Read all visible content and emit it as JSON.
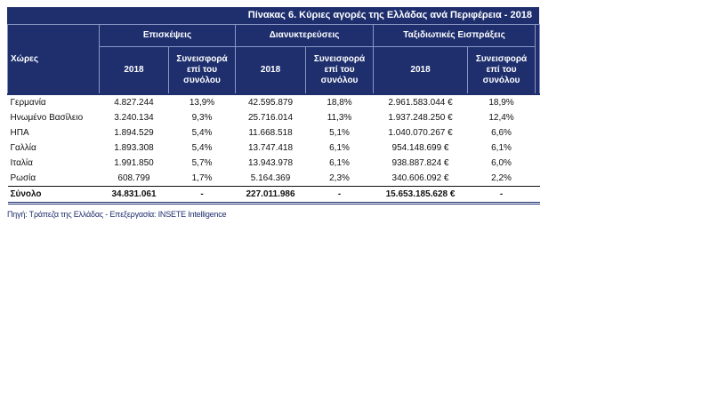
{
  "table": {
    "title": "Πίνακας 6.  Κύριες αγορές  της Ελλάδας ανά Περιφέρεια - 2018",
    "country_header": "Χώρες",
    "groups": [
      "Επισκέψεις",
      "Διανυκτερεύσεις",
      "Ταξιδιωτικές Εισπράξεις"
    ],
    "subheaders": {
      "year": "2018",
      "share": "Συνεισφορά επί του συνόλου"
    },
    "rows": [
      {
        "country": "Γερμανία",
        "visits": "4.827.244",
        "visits_share": "13,9%",
        "nights": "42.595.879",
        "nights_share": "18,8%",
        "receipts": "2.961.583.044 €",
        "receipts_share": "18,9%"
      },
      {
        "country": "Ηνωμένο Βασίλειο",
        "visits": "3.240.134",
        "visits_share": "9,3%",
        "nights": "25.716.014",
        "nights_share": "11,3%",
        "receipts": "1.937.248.250 €",
        "receipts_share": "12,4%"
      },
      {
        "country": "ΗΠΑ",
        "visits": "1.894.529",
        "visits_share": "5,4%",
        "nights": "11.668.518",
        "nights_share": "5,1%",
        "receipts": "1.040.070.267 €",
        "receipts_share": "6,6%"
      },
      {
        "country": "Γαλλία",
        "visits": "1.893.308",
        "visits_share": "5,4%",
        "nights": "13.747.418",
        "nights_share": "6,1%",
        "receipts": "954.148.699 €",
        "receipts_share": "6,1%"
      },
      {
        "country": "Ιταλία",
        "visits": "1.991.850",
        "visits_share": "5,7%",
        "nights": "13.943.978",
        "nights_share": "6,1%",
        "receipts": "938.887.824 €",
        "receipts_share": "6,0%"
      },
      {
        "country": "Ρωσία",
        "visits": "608.799",
        "visits_share": "1,7%",
        "nights": "5.164.369",
        "nights_share": "2,3%",
        "receipts": "340.606.092 €",
        "receipts_share": "2,2%"
      }
    ],
    "total": {
      "country": "Σύνολο",
      "visits": "34.831.061",
      "visits_share": "-",
      "nights": "227.011.986",
      "nights_share": "-",
      "receipts": "15.653.185.628 €",
      "receipts_share": "-"
    }
  },
  "source": "Πηγή: Τράπεζα της Ελλάδας - Επεξεργασία: INSETE Intelligence",
  "colors": {
    "header_bg": "#1f2f6e",
    "header_text": "#ffffff"
  }
}
